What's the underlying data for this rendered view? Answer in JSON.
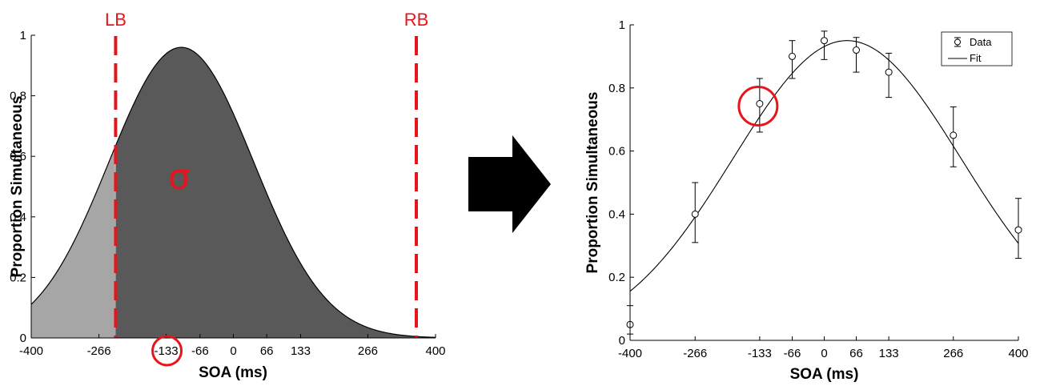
{
  "chart_data": [
    {
      "type": "area",
      "ylabel": "Proportion Simultaneous",
      "xlabel": "SOA (ms)",
      "xlim": [
        -400,
        400
      ],
      "ylim": [
        0,
        1
      ],
      "x_ticks": [
        -400,
        -266,
        -133,
        -66,
        0,
        66,
        133,
        266,
        400
      ],
      "x_tick_labels": [
        "-400",
        "-266",
        "-133",
        "-66",
        "0",
        "66",
        "133",
        "266",
        "400"
      ],
      "y_ticks": [
        0,
        0.2,
        0.4,
        0.6,
        0.8,
        1
      ],
      "y_tick_labels": [
        "0",
        "0.2",
        "0.4",
        "0.6",
        "0.8",
        "1"
      ],
      "curve": {
        "peak": 0.96,
        "mean": -103,
        "sd": 143
      },
      "boundaries": {
        "lb_x": -233,
        "rb_x": 362,
        "lb_label": "LB",
        "rb_label": "RB"
      },
      "sigma_label": "σ",
      "highlight_x": -133,
      "colors": {
        "light_fill": "#a6a6a6",
        "dark_fill": "#595959",
        "annotation": "#e8141b"
      }
    },
    {
      "type": "scatter",
      "ylabel": "Proportion Simultaneous",
      "xlabel": "SOA (ms)",
      "xlim": [
        -400,
        400
      ],
      "ylim": [
        0,
        1
      ],
      "x_ticks": [
        -400,
        -266,
        -133,
        -66,
        0,
        66,
        133,
        266,
        400
      ],
      "x_tick_labels": [
        "-400",
        "-266",
        "-133",
        "-66",
        "0",
        "66",
        "133",
        "266",
        "400"
      ],
      "y_ticks": [
        0,
        0.2,
        0.4,
        0.6,
        0.8,
        1
      ],
      "y_tick_labels": [
        "0",
        "0.2",
        "0.4",
        "0.6",
        "0.8",
        "1"
      ],
      "legend_position": "top-right",
      "series": [
        {
          "name": "Data",
          "x": [
            -400,
            -266,
            -133,
            -66,
            0,
            66,
            133,
            266,
            400
          ],
          "y": [
            0.05,
            0.4,
            0.75,
            0.9,
            0.95,
            0.92,
            0.85,
            0.65,
            0.35
          ],
          "err_low": [
            0.02,
            0.31,
            0.66,
            0.83,
            0.89,
            0.85,
            0.77,
            0.55,
            0.26
          ],
          "err_high": [
            0.11,
            0.5,
            0.83,
            0.95,
            0.98,
            0.96,
            0.91,
            0.74,
            0.45
          ]
        },
        {
          "name": "Fit",
          "fit": {
            "peak": 0.95,
            "mean": 47,
            "sd": 235
          }
        }
      ],
      "highlight": {
        "x": -133,
        "y": 0.75
      }
    }
  ],
  "arrow_color": "#000000"
}
